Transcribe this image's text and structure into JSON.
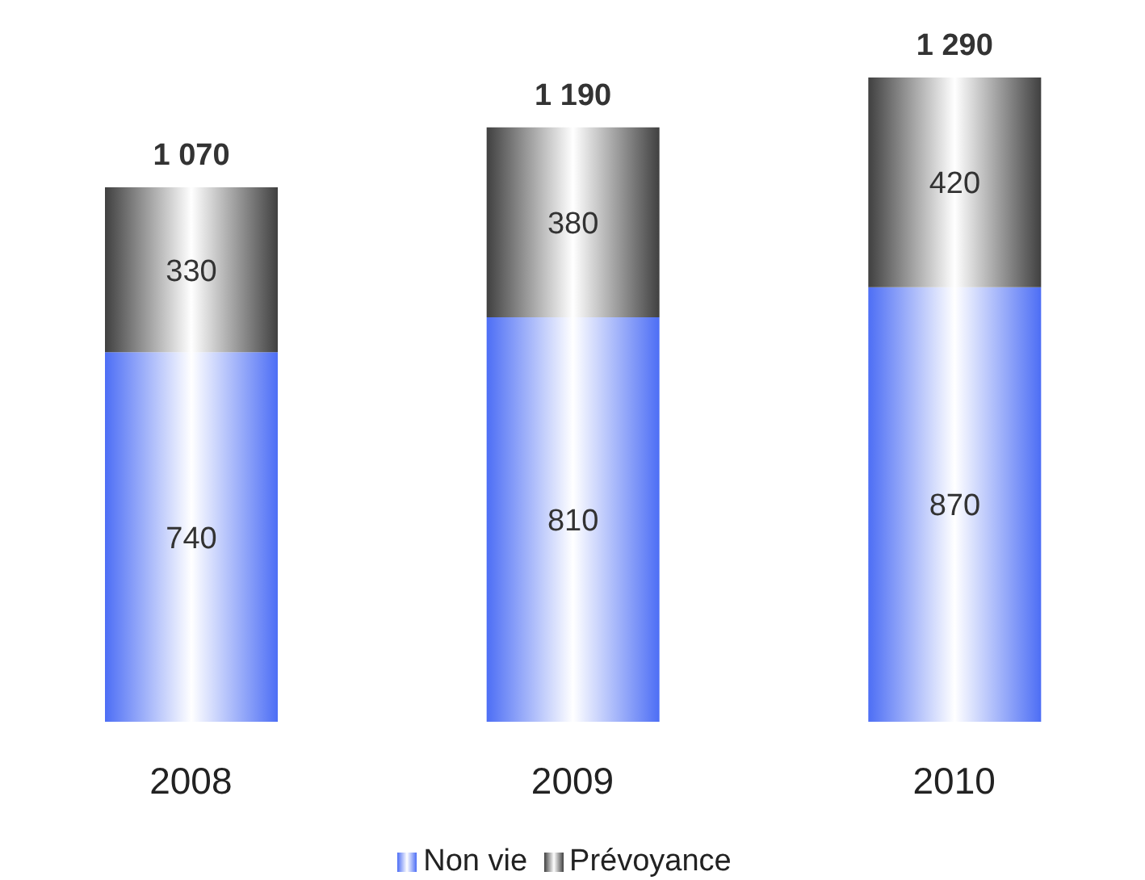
{
  "chart_data": {
    "type": "bar",
    "stacked": true,
    "data_labels": true,
    "legend": "bottom",
    "categories": [
      "2008",
      "2009",
      "2010"
    ],
    "series": [
      {
        "name": "Non vie",
        "color": "#4d6ef5",
        "values": [
          740,
          810,
          870
        ]
      },
      {
        "name": "Prévoyance",
        "color": "#404040",
        "values": [
          330,
          380,
          420
        ]
      }
    ],
    "totals": [
      "1 070",
      "1 190",
      "1 290"
    ]
  }
}
